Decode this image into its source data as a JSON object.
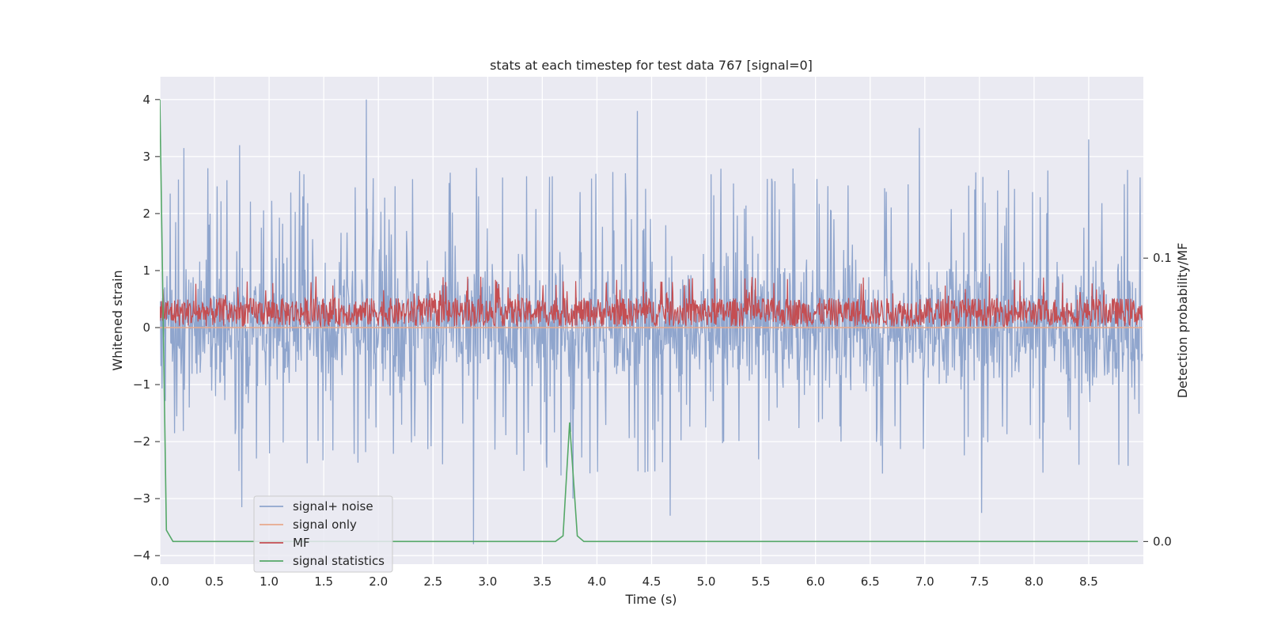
{
  "chart_data": {
    "type": "line",
    "title": "stats at each timestep for test data 767 [signal=0]",
    "xlabel": "Time (s)",
    "ylabel": "Whitened strain",
    "y2label": "Detection probability/MF",
    "xlim": [
      0.0,
      9.0
    ],
    "ylim": [
      -4.15,
      4.4
    ],
    "y2lim": [
      -0.008,
      0.164
    ],
    "xticks": [
      0.0,
      0.5,
      1.0,
      1.5,
      2.0,
      2.5,
      3.0,
      3.5,
      4.0,
      4.5,
      5.0,
      5.5,
      6.0,
      6.5,
      7.0,
      7.5,
      8.0,
      8.5
    ],
    "xtick_labels": [
      "0.0",
      "0.5",
      "1.0",
      "1.5",
      "2.0",
      "2.5",
      "3.0",
      "3.5",
      "4.0",
      "4.5",
      "5.0",
      "5.5",
      "6.0",
      "6.5",
      "7.0",
      "7.5",
      "8.0",
      "8.5"
    ],
    "yticks": [
      -4,
      -3,
      -2,
      -1,
      0,
      1,
      2,
      3,
      4
    ],
    "ytick_labels": [
      "−4",
      "−3",
      "−2",
      "−1",
      "0",
      "1",
      "2",
      "3",
      "4"
    ],
    "y2ticks": [
      0.0,
      0.1
    ],
    "y2tick_labels": [
      "0.0",
      "0.1"
    ],
    "grid": true,
    "legend_position": "lower-left",
    "series": [
      {
        "name": "signal+ noise",
        "axis": "left",
        "color": "#8fa5cd",
        "style": "dense noise, roughly -2 to 2.5 with peaks up to about 4.0 and troughs near -3.8",
        "peaks": [
          {
            "x": 0.22,
            "y": 3.15
          },
          {
            "x": 0.73,
            "y": 3.2
          },
          {
            "x": 1.89,
            "y": 4.0
          },
          {
            "x": 4.37,
            "y": 3.8
          },
          {
            "x": 6.95,
            "y": 3.5
          },
          {
            "x": 8.5,
            "y": 3.3
          }
        ],
        "troughs": [
          {
            "x": 0.75,
            "y": -3.15
          },
          {
            "x": 2.87,
            "y": -3.8
          },
          {
            "x": 3.78,
            "y": -3.0
          },
          {
            "x": 4.67,
            "y": -3.3
          },
          {
            "x": 7.52,
            "y": -3.25
          }
        ]
      },
      {
        "name": "signal only",
        "axis": "left",
        "color": "#e8a98c",
        "values": [
          0
        ]
      },
      {
        "name": "MF",
        "axis": "left",
        "color": "#c44e52",
        "style": "dense noise, roughly 0 to 0.55 with spikes up to about 0.95"
      },
      {
        "name": "signal statistics",
        "axis": "right",
        "color": "#55a868",
        "x": [
          0.0,
          0.06,
          0.12,
          3.62,
          3.69,
          3.75,
          3.82,
          3.88,
          8.95
        ],
        "y": [
          0.156,
          0.004,
          0.0,
          0.0,
          0.002,
          0.042,
          0.002,
          0.0,
          0.0
        ]
      }
    ]
  }
}
